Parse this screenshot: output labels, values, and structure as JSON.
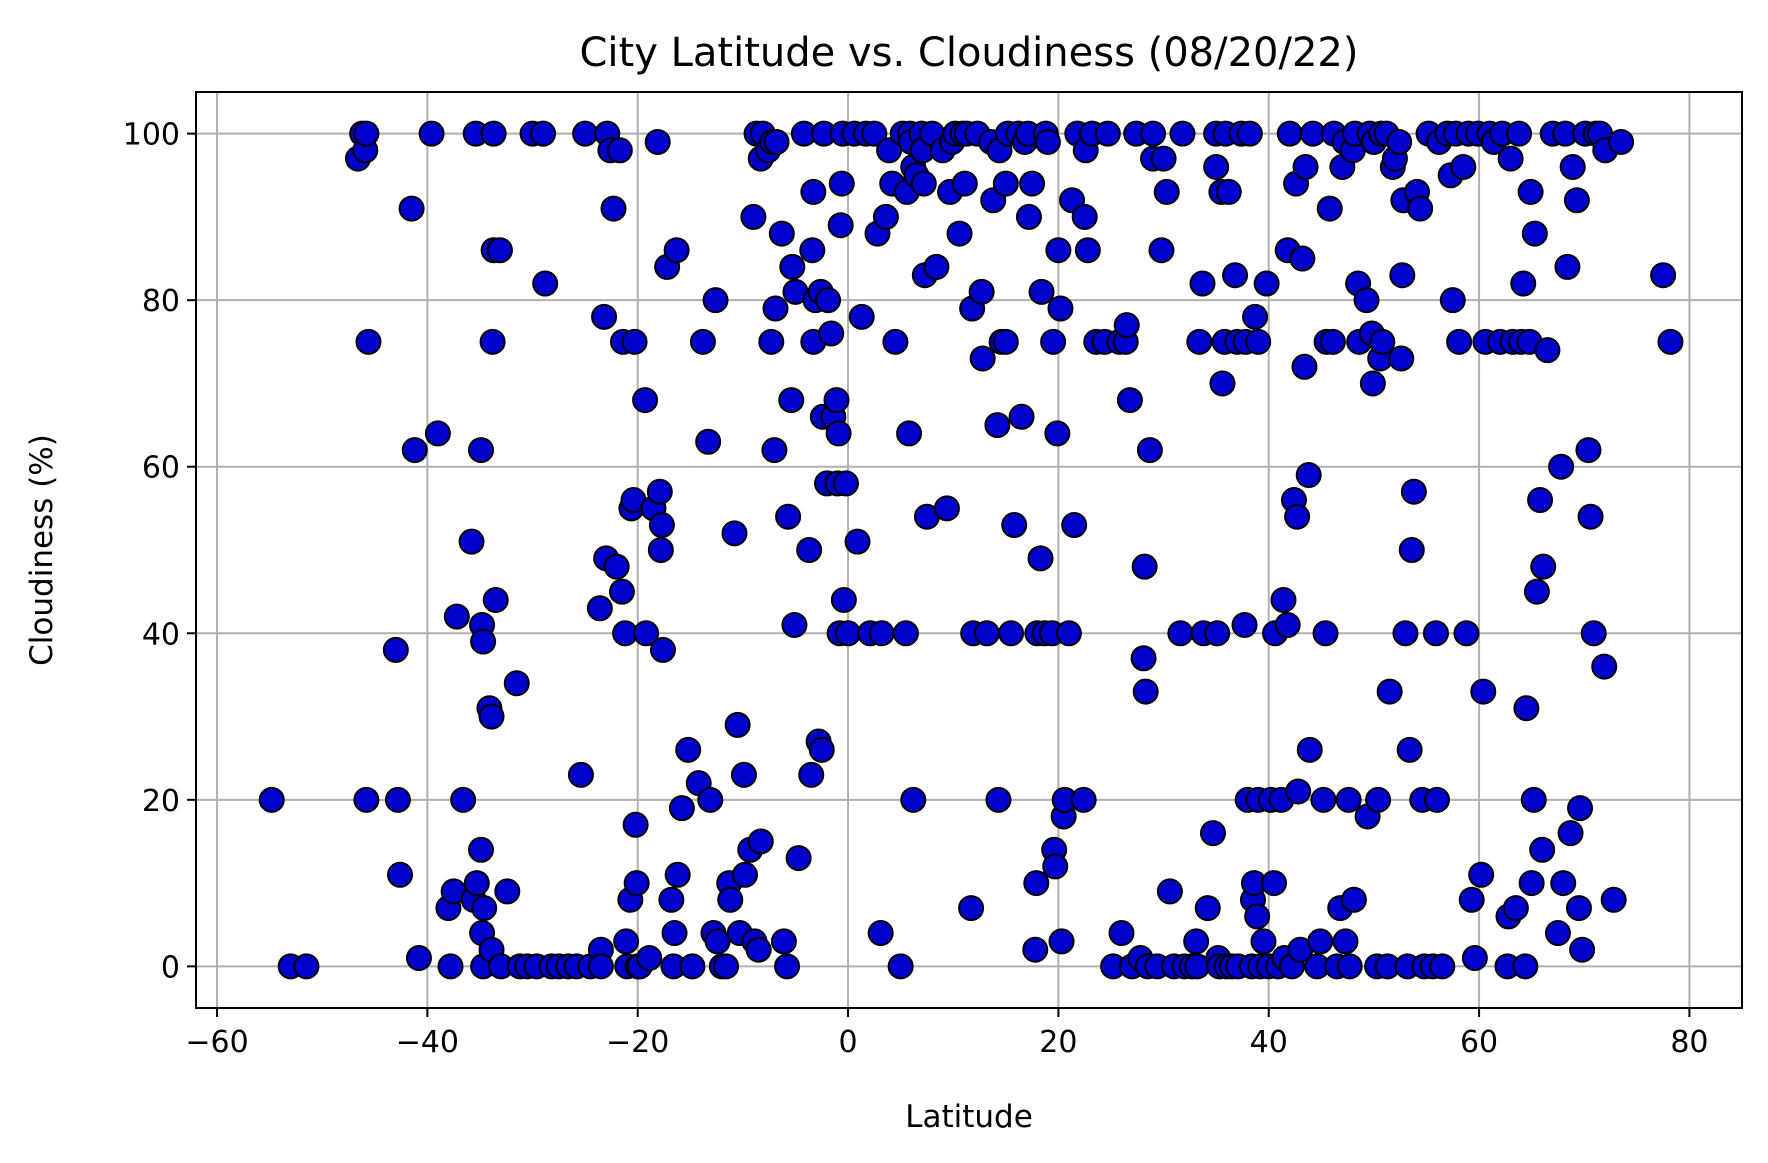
{
  "chart_data": {
    "type": "scatter",
    "title": "City Latitude vs. Cloudiness (08/20/22)",
    "xlabel": "Latitude",
    "ylabel": "Cloudiness (%)",
    "xlim": [
      -62,
      85
    ],
    "ylim": [
      -5,
      105
    ],
    "xticks": [
      -60,
      -40,
      -20,
      0,
      20,
      40,
      60,
      80
    ],
    "yticks": [
      0,
      20,
      40,
      60,
      80,
      100
    ],
    "xtick_labels": [
      "−60",
      "−40",
      "−20",
      "0",
      "20",
      "40",
      "60",
      "80"
    ],
    "ytick_labels": [
      "0",
      "20",
      "40",
      "60",
      "80",
      "100"
    ],
    "grid": true,
    "marker_fill": "#0000cc",
    "marker_edge": "#000000",
    "points": [
      [
        -54.8,
        20
      ],
      [
        -53,
        0
      ],
      [
        -51.5,
        0
      ],
      [
        -46.6,
        97
      ],
      [
        -46.2,
        100
      ],
      [
        -45.9,
        98
      ],
      [
        -45.8,
        100
      ],
      [
        -45.6,
        75
      ],
      [
        -45.8,
        20
      ],
      [
        -43,
        38
      ],
      [
        -42.8,
        20
      ],
      [
        -42.6,
        11
      ],
      [
        -41.5,
        91
      ],
      [
        -41.2,
        62
      ],
      [
        -40.8,
        1
      ],
      [
        -39.6,
        100
      ],
      [
        -39,
        64
      ],
      [
        -38,
        7
      ],
      [
        -37.8,
        0
      ],
      [
        -37.5,
        9
      ],
      [
        -37.2,
        42
      ],
      [
        -36.6,
        20
      ],
      [
        -35.8,
        51
      ],
      [
        -35.6,
        8
      ],
      [
        -35.4,
        100
      ],
      [
        -35.3,
        10
      ],
      [
        -34.9,
        62
      ],
      [
        -34.9,
        14
      ],
      [
        -34.8,
        41
      ],
      [
        -34.7,
        39
      ],
      [
        -34.8,
        4
      ],
      [
        -34.6,
        7
      ],
      [
        -34.7,
        0
      ],
      [
        -34.1,
        31
      ],
      [
        -33.9,
        30
      ],
      [
        -33.8,
        75
      ],
      [
        -33.7,
        100
      ],
      [
        -33.7,
        86
      ],
      [
        -33.5,
        44
      ],
      [
        -33.9,
        2
      ],
      [
        -33.1,
        86
      ],
      [
        -33,
        0
      ],
      [
        -32.4,
        9
      ],
      [
        -31.5,
        34
      ],
      [
        -31.2,
        0
      ],
      [
        -30.5,
        0
      ],
      [
        -30,
        100
      ],
      [
        -29.6,
        0
      ],
      [
        -29,
        100
      ],
      [
        -28.8,
        82
      ],
      [
        -28.2,
        0
      ],
      [
        -27.5,
        0
      ],
      [
        -26.6,
        0
      ],
      [
        -25.8,
        0
      ],
      [
        -25.4,
        23
      ],
      [
        -25,
        100
      ],
      [
        -24.5,
        0
      ],
      [
        -23.6,
        43
      ],
      [
        -23.5,
        2
      ],
      [
        -23.2,
        78
      ],
      [
        -23.5,
        0
      ],
      [
        -23,
        49
      ],
      [
        -22.9,
        100
      ],
      [
        -22.6,
        98
      ],
      [
        -22.3,
        91
      ],
      [
        -22,
        48
      ],
      [
        -21.7,
        98
      ],
      [
        -21.5,
        45
      ],
      [
        -21.4,
        75
      ],
      [
        -21.2,
        40
      ],
      [
        -21.1,
        3
      ],
      [
        -21,
        0
      ],
      [
        -20.7,
        8
      ],
      [
        -20.6,
        55
      ],
      [
        -20.4,
        56
      ],
      [
        -20.3,
        75
      ],
      [
        -20.2,
        17
      ],
      [
        -20.1,
        10
      ],
      [
        -20,
        0
      ],
      [
        -19.8,
        0
      ],
      [
        -19.3,
        68
      ],
      [
        -19.2,
        40
      ],
      [
        -18.9,
        1
      ],
      [
        -18.5,
        55
      ],
      [
        -18.1,
        99
      ],
      [
        -17.9,
        57
      ],
      [
        -17.8,
        50
      ],
      [
        -17.7,
        53
      ],
      [
        -17.6,
        38
      ],
      [
        -17.2,
        84
      ],
      [
        -16.8,
        8
      ],
      [
        -16.6,
        0
      ],
      [
        -16.5,
        4
      ],
      [
        -16.3,
        86
      ],
      [
        -16.2,
        11
      ],
      [
        -15.8,
        19
      ],
      [
        -15.2,
        26
      ],
      [
        -14.8,
        0
      ],
      [
        -14.2,
        22
      ],
      [
        -13.8,
        75
      ],
      [
        -13.3,
        63
      ],
      [
        -13.1,
        20
      ],
      [
        -12.8,
        4
      ],
      [
        -12.6,
        80
      ],
      [
        -12.4,
        3
      ],
      [
        -12,
        0
      ],
      [
        -11.6,
        0
      ],
      [
        -11.3,
        10
      ],
      [
        -11.2,
        8
      ],
      [
        -10.8,
        52
      ],
      [
        -10.5,
        29
      ],
      [
        -10.3,
        4
      ],
      [
        -9.9,
        23
      ],
      [
        -9.8,
        11
      ],
      [
        -9.3,
        14
      ],
      [
        -9,
        90
      ],
      [
        -8.9,
        3
      ],
      [
        -8.7,
        100
      ],
      [
        -8.5,
        2
      ],
      [
        -8.3,
        15
      ],
      [
        -8.3,
        97
      ],
      [
        -8.1,
        100
      ],
      [
        -7.6,
        98
      ],
      [
        -7.3,
        75
      ],
      [
        -7.2,
        99
      ],
      [
        -7,
        62
      ],
      [
        -6.9,
        79
      ],
      [
        -6.8,
        99
      ],
      [
        -6.3,
        88
      ],
      [
        -6.1,
        3
      ],
      [
        -5.8,
        0
      ],
      [
        -5.7,
        54
      ],
      [
        -5.4,
        68
      ],
      [
        -5.3,
        84
      ],
      [
        -5.1,
        41
      ],
      [
        -5,
        81
      ],
      [
        -4.7,
        13
      ],
      [
        -4.2,
        100
      ],
      [
        -3.7,
        50
      ],
      [
        -3.5,
        23
      ],
      [
        -3.4,
        86
      ],
      [
        -3.3,
        75
      ],
      [
        -3.3,
        93
      ],
      [
        -3.1,
        80
      ],
      [
        -2.8,
        27
      ],
      [
        -2.6,
        81
      ],
      [
        -2.5,
        26
      ],
      [
        -2.4,
        66
      ],
      [
        -2.3,
        100
      ],
      [
        -2,
        58
      ],
      [
        -1.9,
        80
      ],
      [
        -1.6,
        76
      ],
      [
        -1.4,
        66
      ],
      [
        -1.1,
        68
      ],
      [
        -1,
        58
      ],
      [
        -0.9,
        64
      ],
      [
        -0.8,
        40
      ],
      [
        -0.7,
        89
      ],
      [
        -0.6,
        94
      ],
      [
        -0.5,
        100
      ],
      [
        -0.4,
        44
      ],
      [
        -0.2,
        58
      ],
      [
        0,
        40
      ],
      [
        0.6,
        100
      ],
      [
        0.9,
        51
      ],
      [
        1.3,
        78
      ],
      [
        1.7,
        100
      ],
      [
        2.1,
        40
      ],
      [
        2.5,
        100
      ],
      [
        2.8,
        88
      ],
      [
        3.1,
        4
      ],
      [
        3.2,
        40
      ],
      [
        3.6,
        90
      ],
      [
        3.9,
        98
      ],
      [
        4.2,
        94
      ],
      [
        4.5,
        75
      ],
      [
        5,
        0
      ],
      [
        5.2,
        100
      ],
      [
        5.5,
        40
      ],
      [
        5.6,
        93
      ],
      [
        5.8,
        64
      ],
      [
        5.9,
        100
      ],
      [
        6,
        99
      ],
      [
        6.2,
        96
      ],
      [
        6.2,
        20
      ],
      [
        6.5,
        95
      ],
      [
        7,
        100
      ],
      [
        7.1,
        98
      ],
      [
        7.2,
        94
      ],
      [
        7.3,
        83
      ],
      [
        7.5,
        54
      ],
      [
        8,
        100
      ],
      [
        8.4,
        84
      ],
      [
        9,
        98
      ],
      [
        9.4,
        55
      ],
      [
        9.7,
        93
      ],
      [
        9.9,
        99
      ],
      [
        10.2,
        100
      ],
      [
        10.6,
        88
      ],
      [
        10.9,
        100
      ],
      [
        11.1,
        94
      ],
      [
        11.3,
        100
      ],
      [
        11.7,
        7
      ],
      [
        11.8,
        79
      ],
      [
        11.9,
        40
      ],
      [
        12.3,
        100
      ],
      [
        12.7,
        81
      ],
      [
        12.8,
        73
      ],
      [
        13.2,
        40
      ],
      [
        13.6,
        99
      ],
      [
        13.8,
        92
      ],
      [
        14.2,
        65
      ],
      [
        14.3,
        20
      ],
      [
        14.4,
        98
      ],
      [
        14.6,
        75
      ],
      [
        15,
        75
      ],
      [
        15,
        94
      ],
      [
        15.2,
        100
      ],
      [
        15.5,
        40
      ],
      [
        15.8,
        53
      ],
      [
        16.2,
        100
      ],
      [
        16.5,
        66
      ],
      [
        16.8,
        99
      ],
      [
        17.1,
        100
      ],
      [
        17.2,
        90
      ],
      [
        17.5,
        94
      ],
      [
        17.8,
        2
      ],
      [
        17.9,
        10
      ],
      [
        18,
        40
      ],
      [
        18.3,
        49
      ],
      [
        18.4,
        81
      ],
      [
        18.7,
        40
      ],
      [
        18.8,
        100
      ],
      [
        19,
        99
      ],
      [
        19.4,
        40
      ],
      [
        19.5,
        75
      ],
      [
        19.6,
        14
      ],
      [
        19.7,
        12
      ],
      [
        19.9,
        64
      ],
      [
        20,
        86
      ],
      [
        20.2,
        79
      ],
      [
        20.3,
        3
      ],
      [
        20.5,
        18
      ],
      [
        20.6,
        20
      ],
      [
        21,
        40
      ],
      [
        21.3,
        92
      ],
      [
        21.5,
        53
      ],
      [
        21.8,
        100
      ],
      [
        22.4,
        20
      ],
      [
        22.5,
        90
      ],
      [
        22.6,
        98
      ],
      [
        22.8,
        86
      ],
      [
        23.2,
        100
      ],
      [
        23.6,
        75
      ],
      [
        24.4,
        75
      ],
      [
        24.7,
        100
      ],
      [
        25.2,
        0
      ],
      [
        25.8,
        75
      ],
      [
        26,
        4
      ],
      [
        26.4,
        75
      ],
      [
        26.5,
        77
      ],
      [
        26.8,
        68
      ],
      [
        27,
        0
      ],
      [
        27.4,
        100
      ],
      [
        27.8,
        1
      ],
      [
        28.1,
        37
      ],
      [
        28.2,
        48
      ],
      [
        28.3,
        33
      ],
      [
        28.5,
        0
      ],
      [
        28.7,
        62
      ],
      [
        29,
        100
      ],
      [
        29,
        97
      ],
      [
        29.4,
        0
      ],
      [
        29.8,
        86
      ],
      [
        30,
        97
      ],
      [
        30.3,
        93
      ],
      [
        30.6,
        9
      ],
      [
        31,
        0
      ],
      [
        31.6,
        40
      ],
      [
        31.8,
        100
      ],
      [
        32,
        0
      ],
      [
        32.7,
        0
      ],
      [
        33.1,
        3
      ],
      [
        33.2,
        0
      ],
      [
        33.4,
        75
      ],
      [
        33.7,
        82
      ],
      [
        33.8,
        40
      ],
      [
        34.2,
        7
      ],
      [
        34.7,
        16
      ],
      [
        35,
        100
      ],
      [
        35,
        96
      ],
      [
        35.1,
        40
      ],
      [
        35.2,
        1
      ],
      [
        35.3,
        0
      ],
      [
        35.5,
        93
      ],
      [
        35.6,
        70
      ],
      [
        35.8,
        75
      ],
      [
        35.9,
        100
      ],
      [
        36,
        0
      ],
      [
        36.2,
        93
      ],
      [
        36.5,
        0
      ],
      [
        36.8,
        83
      ],
      [
        37,
        75
      ],
      [
        37.1,
        0
      ],
      [
        37.4,
        100
      ],
      [
        37.7,
        41
      ],
      [
        37.8,
        75
      ],
      [
        38,
        20
      ],
      [
        38.2,
        100
      ],
      [
        38.4,
        0
      ],
      [
        38.5,
        8
      ],
      [
        38.6,
        10
      ],
      [
        38.7,
        78
      ],
      [
        38.9,
        6
      ],
      [
        39,
        20
      ],
      [
        39,
        75
      ],
      [
        39.2,
        0
      ],
      [
        39.5,
        3
      ],
      [
        39.8,
        82
      ],
      [
        40,
        0
      ],
      [
        40.2,
        20
      ],
      [
        40.5,
        10
      ],
      [
        40.6,
        40
      ],
      [
        40.9,
        0
      ],
      [
        41.2,
        20
      ],
      [
        41.4,
        44
      ],
      [
        41.5,
        1
      ],
      [
        41.8,
        86
      ],
      [
        41.8,
        41
      ],
      [
        42,
        100
      ],
      [
        42.2,
        0
      ],
      [
        42.4,
        56
      ],
      [
        42.6,
        94
      ],
      [
        42.7,
        54
      ],
      [
        42.8,
        21
      ],
      [
        43,
        2
      ],
      [
        43.2,
        85
      ],
      [
        43.4,
        72
      ],
      [
        43.5,
        96
      ],
      [
        43.8,
        59
      ],
      [
        43.9,
        26
      ],
      [
        44.2,
        100
      ],
      [
        44.6,
        0
      ],
      [
        44.9,
        3
      ],
      [
        45.2,
        20
      ],
      [
        45.4,
        40
      ],
      [
        45.5,
        75
      ],
      [
        45.8,
        91
      ],
      [
        46.1,
        75
      ],
      [
        46.2,
        100
      ],
      [
        46.5,
        0
      ],
      [
        46.8,
        7
      ],
      [
        47,
        96
      ],
      [
        47.2,
        99
      ],
      [
        47.3,
        3
      ],
      [
        47.6,
        20
      ],
      [
        47.7,
        0
      ],
      [
        48,
        98
      ],
      [
        48.1,
        8
      ],
      [
        48.2,
        100
      ],
      [
        48.5,
        82
      ],
      [
        48.6,
        75
      ],
      [
        49.3,
        80
      ],
      [
        49.4,
        18
      ],
      [
        49.6,
        100
      ],
      [
        49.8,
        76
      ],
      [
        49.9,
        70
      ],
      [
        50,
        99
      ],
      [
        50.3,
        0
      ],
      [
        50.4,
        20
      ],
      [
        50.6,
        73
      ],
      [
        50.7,
        100
      ],
      [
        50.8,
        75
      ],
      [
        51.2,
        100
      ],
      [
        51.3,
        0
      ],
      [
        51.5,
        33
      ],
      [
        51.8,
        96
      ],
      [
        52,
        97
      ],
      [
        52.4,
        99
      ],
      [
        52.6,
        73
      ],
      [
        52.7,
        83
      ],
      [
        52.8,
        92
      ],
      [
        53,
        40
      ],
      [
        53.2,
        0
      ],
      [
        53.4,
        26
      ],
      [
        53.6,
        50
      ],
      [
        53.8,
        57
      ],
      [
        54.1,
        93
      ],
      [
        54.4,
        91
      ],
      [
        54.6,
        20
      ],
      [
        54.8,
        0
      ],
      [
        55.2,
        100
      ],
      [
        55.6,
        0
      ],
      [
        55.9,
        40
      ],
      [
        56,
        20
      ],
      [
        56.2,
        99
      ],
      [
        56.5,
        0
      ],
      [
        57,
        100
      ],
      [
        57.3,
        95
      ],
      [
        57.5,
        80
      ],
      [
        57.8,
        100
      ],
      [
        58.1,
        75
      ],
      [
        58.5,
        96
      ],
      [
        58.8,
        40
      ],
      [
        59,
        100
      ],
      [
        59.3,
        8
      ],
      [
        59.6,
        1
      ],
      [
        59.9,
        100
      ],
      [
        60.2,
        11
      ],
      [
        60.4,
        33
      ],
      [
        60.6,
        75
      ],
      [
        61,
        100
      ],
      [
        61.4,
        99
      ],
      [
        62,
        75
      ],
      [
        62.2,
        100
      ],
      [
        62.7,
        0
      ],
      [
        62.8,
        6
      ],
      [
        63,
        97
      ],
      [
        63.2,
        75
      ],
      [
        63.5,
        7
      ],
      [
        63.8,
        100
      ],
      [
        64,
        75
      ],
      [
        64.2,
        82
      ],
      [
        64.4,
        0
      ],
      [
        64.5,
        31
      ],
      [
        64.8,
        75
      ],
      [
        64.9,
        93
      ],
      [
        65,
        10
      ],
      [
        65.2,
        20
      ],
      [
        65.3,
        88
      ],
      [
        65.5,
        45
      ],
      [
        65.8,
        56
      ],
      [
        66,
        14
      ],
      [
        66.1,
        48
      ],
      [
        66.5,
        74
      ],
      [
        67,
        100
      ],
      [
        67.5,
        4
      ],
      [
        67.8,
        60
      ],
      [
        68,
        10
      ],
      [
        68.2,
        100
      ],
      [
        68.4,
        84
      ],
      [
        68.7,
        16
      ],
      [
        68.9,
        96
      ],
      [
        69.3,
        92
      ],
      [
        69.5,
        7
      ],
      [
        69.6,
        19
      ],
      [
        69.8,
        2
      ],
      [
        70.1,
        100
      ],
      [
        70.4,
        62
      ],
      [
        70.6,
        54
      ],
      [
        70.9,
        40
      ],
      [
        71.1,
        100
      ],
      [
        71.5,
        100
      ],
      [
        71.9,
        36
      ],
      [
        72,
        98
      ],
      [
        72.8,
        8
      ],
      [
        73.5,
        99
      ],
      [
        77.5,
        83
      ],
      [
        78.2,
        75
      ]
    ]
  }
}
